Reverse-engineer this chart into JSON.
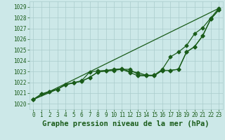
{
  "title": "Graphe pression niveau de la mer (hPa)",
  "bg_color": "#cce8e8",
  "grid_color": "#aacccc",
  "line_color": "#1a5c1a",
  "xlim": [
    -0.5,
    23.5
  ],
  "ylim": [
    1019.5,
    1029.5
  ],
  "yticks": [
    1020,
    1021,
    1022,
    1023,
    1024,
    1025,
    1026,
    1027,
    1028,
    1029
  ],
  "xticks": [
    0,
    1,
    2,
    3,
    4,
    5,
    6,
    7,
    8,
    9,
    10,
    11,
    12,
    13,
    14,
    15,
    16,
    17,
    18,
    19,
    20,
    21,
    22,
    23
  ],
  "series": [
    {
      "x": [
        0,
        1,
        2,
        3,
        4,
        5,
        6,
        7,
        8,
        9,
        10,
        11,
        12,
        13,
        14,
        15,
        16,
        17,
        18,
        19,
        20,
        21,
        22,
        23
      ],
      "y": [
        1020.4,
        1020.9,
        1021.15,
        1021.35,
        1021.8,
        1021.95,
        1022.1,
        1022.45,
        1022.95,
        1023.05,
        1023.1,
        1023.2,
        1022.9,
        1022.6,
        1022.6,
        1022.6,
        1023.1,
        1023.1,
        1023.2,
        1024.8,
        1025.3,
        1026.3,
        1027.85,
        1028.7
      ],
      "marker": "D",
      "markersize": 2.5,
      "linewidth": 0.9
    },
    {
      "x": [
        0,
        1,
        2,
        3,
        4,
        5,
        6,
        7,
        8,
        9,
        10,
        11,
        12,
        13,
        14,
        15,
        16,
        17,
        18,
        19,
        20,
        21,
        22,
        23
      ],
      "y": [
        1020.4,
        1020.9,
        1021.15,
        1021.35,
        1021.8,
        1021.95,
        1022.1,
        1022.45,
        1022.95,
        1023.05,
        1023.15,
        1023.2,
        1023.2,
        1022.7,
        1022.65,
        1022.65,
        1023.2,
        1024.35,
        1024.8,
        1025.4,
        1026.5,
        1027.05,
        1027.95,
        1028.85
      ],
      "marker": "D",
      "markersize": 2.5,
      "linewidth": 0.9
    },
    {
      "x": [
        0,
        3,
        4,
        5,
        6,
        7,
        8,
        9,
        10,
        11,
        12,
        13,
        14,
        15,
        16,
        17,
        18,
        19,
        20,
        21,
        22,
        23
      ],
      "y": [
        1020.4,
        1021.35,
        1021.75,
        1021.95,
        1022.15,
        1022.95,
        1023.05,
        1023.1,
        1023.2,
        1023.25,
        1023.0,
        1022.9,
        1022.65,
        1022.65,
        1023.1,
        1023.1,
        1023.2,
        1024.8,
        1025.3,
        1026.3,
        1027.85,
        1028.7
      ],
      "marker": "D",
      "markersize": 2.5,
      "linewidth": 0.9
    },
    {
      "x": [
        0,
        23
      ],
      "y": [
        1020.4,
        1028.85
      ],
      "marker": null,
      "markersize": 0,
      "linewidth": 0.9
    }
  ],
  "title_fontsize": 7.5,
  "tick_fontsize": 5.5,
  "tick_color": "#1a5c1a",
  "title_color": "#1a5c1a"
}
